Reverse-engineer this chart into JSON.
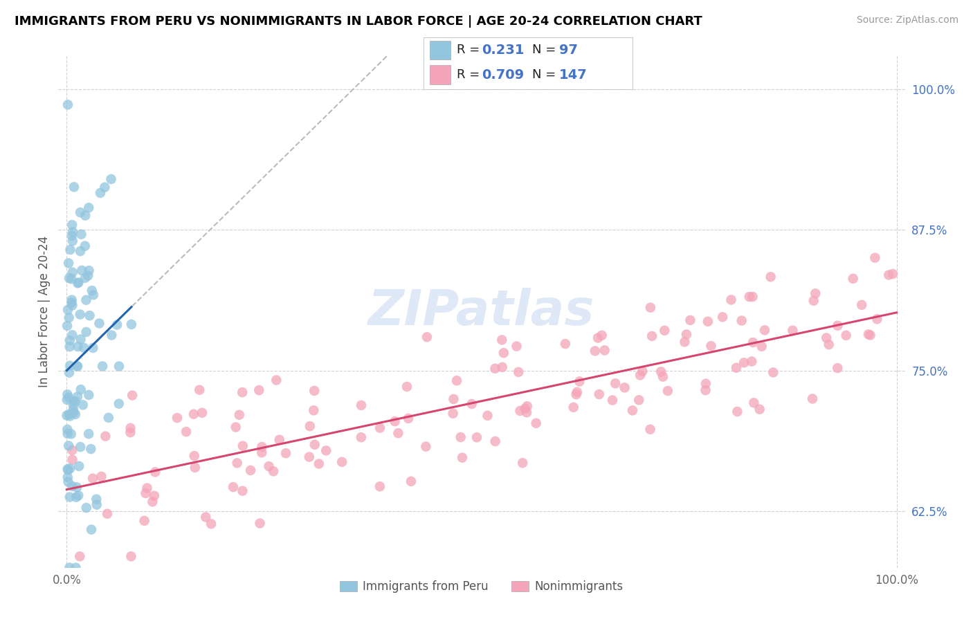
{
  "title": "IMMIGRANTS FROM PERU VS NONIMMIGRANTS IN LABOR FORCE | AGE 20-24 CORRELATION CHART",
  "source": "Source: ZipAtlas.com",
  "ylabel": "In Labor Force | Age 20-24",
  "xlim": [
    -0.01,
    1.01
  ],
  "ylim": [
    0.575,
    1.03
  ],
  "xtick_positions": [
    0.0,
    1.0
  ],
  "xtick_labels": [
    "0.0%",
    "100.0%"
  ],
  "ytick_positions": [
    0.625,
    0.75,
    0.875,
    1.0
  ],
  "ytick_labels": [
    "62.5%",
    "75.0%",
    "87.5%",
    "100.0%"
  ],
  "blue_color": "#92c5de",
  "pink_color": "#f4a4b8",
  "blue_line_color": "#2166ac",
  "pink_line_color": "#d6456e",
  "grid_color": "#cccccc",
  "watermark_color": "#c8daf0",
  "blue_seed": 42,
  "pink_seed": 99,
  "n_blue": 97,
  "n_pink": 147
}
